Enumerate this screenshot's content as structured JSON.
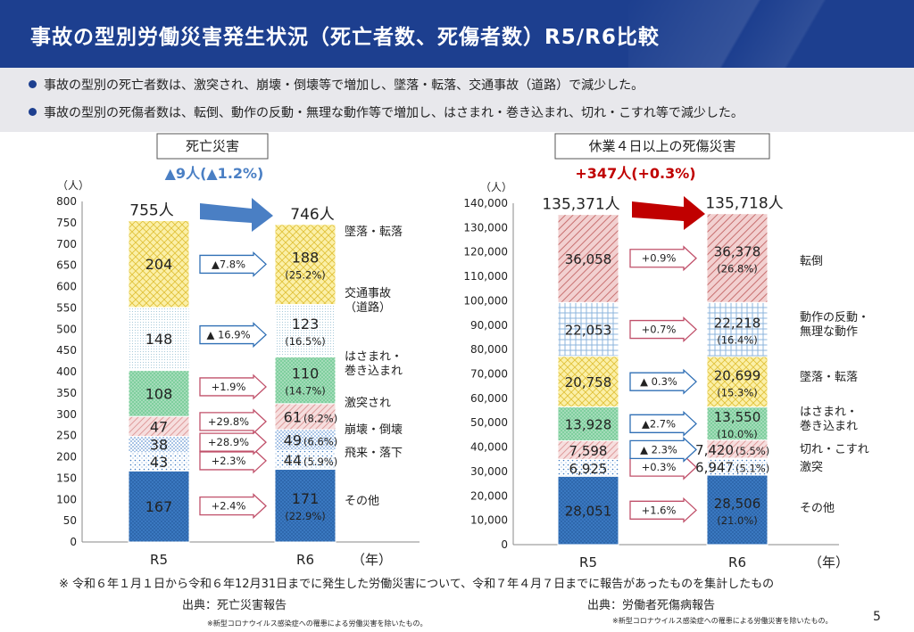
{
  "header": {
    "title": "事故の型別労働災害発生状況（死亡者数、死傷者数）R5/R6比較"
  },
  "summary": [
    "事故の型別の死亡者数は、激突され、崩壊・倒壊等で増加し、墜落・転落、交通事故（道路）で減少した。",
    "事故の型別の死傷者数は、転倒、動作の反動・無理な動作等で増加し、はさまれ・巻き込まれ、切れ・こすれ等で減少した。"
  ],
  "footer": {
    "note": "※ 令和６年１月１日から令和６年12月31日までに発生した労働災害について、令和７年４月７日までに報告があったものを集計したもの",
    "source_left": "出典：死亡災害報告",
    "source_right": "出典：労働者死傷病報告",
    "small_left": "※新型コロナウイルス感染症への罹患による労働災害を除いたもの。",
    "small_right": "※新型コロナウイルス感染症への罹患による労働災害を除いたもの。",
    "page": "5"
  },
  "colors": {
    "header": "#1d3f8f",
    "arrow_down": "#4a7fc4",
    "arrow_up": "#c00000",
    "change_up_border": "#c0506a",
    "change_down_border": "#2f6fb5"
  },
  "chart_data": [
    {
      "type": "bar",
      "stacked": true,
      "title": "死亡災害",
      "unit": "（人）",
      "year_label": "（年）",
      "categories": [
        "R5",
        "R6"
      ],
      "ylim": [
        0,
        800
      ],
      "yticks": [
        0,
        50,
        100,
        150,
        200,
        250,
        300,
        350,
        400,
        450,
        500,
        550,
        600,
        650,
        700,
        750,
        800
      ],
      "totals": [
        "755人",
        "746人"
      ],
      "change": "▲9人(▲1.2%)",
      "change_dir": "down",
      "series": [
        {
          "name": "その他",
          "label": "その他",
          "values": [
            167,
            171
          ],
          "pct": "(22.9%)",
          "change": "+2.4%",
          "dir": "up",
          "pattern": "dots-blue"
        },
        {
          "name": "飛来・落下",
          "label": "飛来・落下",
          "values": [
            43,
            44
          ],
          "pct": "(5.9%)",
          "change": "+2.3%",
          "dir": "up",
          "pattern": "sparse-dots"
        },
        {
          "name": "崩壊・倒壊",
          "label": "崩壊・倒壊",
          "values": [
            38,
            49
          ],
          "pct": "(6.6%)",
          "change": "+28.9%",
          "dir": "up",
          "pattern": "dots-blue-light"
        },
        {
          "name": "激突され",
          "label": "激突され",
          "values": [
            47,
            61
          ],
          "pct": "(8.2%)",
          "change": "+29.8%",
          "dir": "up",
          "pattern": "hatch-pink"
        },
        {
          "name": "はさまれ・巻き込まれ",
          "label": "はさまれ・\n巻き込まれ",
          "values": [
            108,
            110
          ],
          "pct": "(14.7%)",
          "change": "+1.9%",
          "dir": "up",
          "pattern": "green-dots"
        },
        {
          "name": "交通事故（道路）",
          "label": "交通事故\n（道路）",
          "values": [
            148,
            123
          ],
          "pct": "(16.5%)",
          "change": "▲ 16.9%",
          "dir": "down",
          "pattern": "fine-dots"
        },
        {
          "name": "墜落・転落",
          "label": "墜落・転落",
          "values": [
            204,
            188
          ],
          "pct": "(25.2%)",
          "change": "▲7.8%",
          "dir": "down",
          "pattern": "yellow-cross"
        }
      ]
    },
    {
      "type": "bar",
      "stacked": true,
      "title": "休業４日以上の死傷災害",
      "unit": "（人）",
      "year_label": "（年）",
      "categories": [
        "R5",
        "R6"
      ],
      "ylim": [
        0,
        140000
      ],
      "yticks": [
        0,
        10000,
        20000,
        30000,
        40000,
        50000,
        60000,
        70000,
        80000,
        90000,
        100000,
        110000,
        120000,
        130000,
        140000
      ],
      "ytick_labels": [
        "0",
        "10,000",
        "20,000",
        "30,000",
        "40,000",
        "50,000",
        "60,000",
        "70,000",
        "80,000",
        "90,000",
        "100,000",
        "110,000",
        "120,000",
        "130,000",
        "140,000"
      ],
      "totals": [
        "135,371人",
        "135,718人"
      ],
      "change": "+347人(+0.3%)",
      "change_dir": "up",
      "series": [
        {
          "name": "その他",
          "label": "その他",
          "values": [
            28051,
            28506
          ],
          "value_labels": [
            "28,051",
            "28,506"
          ],
          "pct": "(21.0%)",
          "change": "+1.6%",
          "dir": "up",
          "pattern": "dots-blue"
        },
        {
          "name": "激突",
          "label": "激突",
          "values": [
            6925,
            6947
          ],
          "value_labels": [
            "6,925",
            "6,947"
          ],
          "pct": "(5.1%)",
          "change": "+0.3%",
          "dir": "up",
          "pattern": "sparse-dots"
        },
        {
          "name": "切れ・こすれ",
          "label": "切れ・こすれ",
          "values": [
            7598,
            7420
          ],
          "value_labels": [
            "7,598",
            "7,420"
          ],
          "pct": "(5.5%)",
          "change": "▲ 2.3%",
          "dir": "down",
          "pattern": "hatch-pink"
        },
        {
          "name": "はさまれ・巻き込まれ",
          "label": "はさまれ・\n巻き込まれ",
          "values": [
            13928,
            13550
          ],
          "value_labels": [
            "13,928",
            "13,550"
          ],
          "pct": "(10.0%)",
          "change": "▲2.7%",
          "dir": "down",
          "pattern": "green-dots"
        },
        {
          "name": "墜落・転落",
          "label": "墜落・転落",
          "values": [
            20758,
            20699
          ],
          "value_labels": [
            "20,758",
            "20,699"
          ],
          "pct": "(15.3%)",
          "change": "▲ 0.3%",
          "dir": "down",
          "pattern": "yellow-cross"
        },
        {
          "name": "動作の反動・無理な動作",
          "label": "動作の反動・\n無理な動作",
          "values": [
            22053,
            22218
          ],
          "value_labels": [
            "22,053",
            "22,218"
          ],
          "pct": "(16.4%)",
          "change": "+0.7%",
          "dir": "up",
          "pattern": "grid-blue"
        },
        {
          "name": "転倒",
          "label": "転倒",
          "values": [
            36058,
            36378
          ],
          "value_labels": [
            "36,058",
            "36,378"
          ],
          "pct": "(26.8%)",
          "change": "+0.9%",
          "dir": "up",
          "pattern": "hatch-red"
        }
      ]
    }
  ]
}
